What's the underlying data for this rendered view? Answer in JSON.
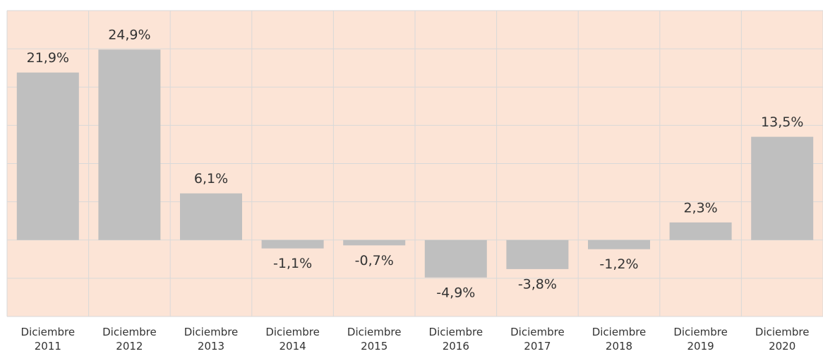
{
  "chart_data": {
    "type": "bar",
    "categories": [
      "Diciembre 2011",
      "Diciembre 2012",
      "Diciembre 2013",
      "Diciembre 2014",
      "Diciembre 2015",
      "Diciembre 2016",
      "Diciembre 2017",
      "Diciembre 2018",
      "Diciembre 2019",
      "Diciembre 2020"
    ],
    "values": [
      21.9,
      24.9,
      6.1,
      -1.1,
      -0.7,
      -4.9,
      -3.8,
      -1.2,
      2.3,
      13.5
    ],
    "value_labels": [
      "21,9%",
      "24,9%",
      "6,1%",
      "-1,1%",
      "-0,7%",
      "-4,9%",
      "-3,8%",
      "-1,2%",
      "2,3%",
      "13,5%"
    ],
    "color": "#bfbfbf",
    "ylim": [
      -10,
      30
    ],
    "yticks": [
      -10,
      -5,
      0,
      5,
      10,
      15,
      20,
      25,
      30
    ],
    "grid": true
  }
}
